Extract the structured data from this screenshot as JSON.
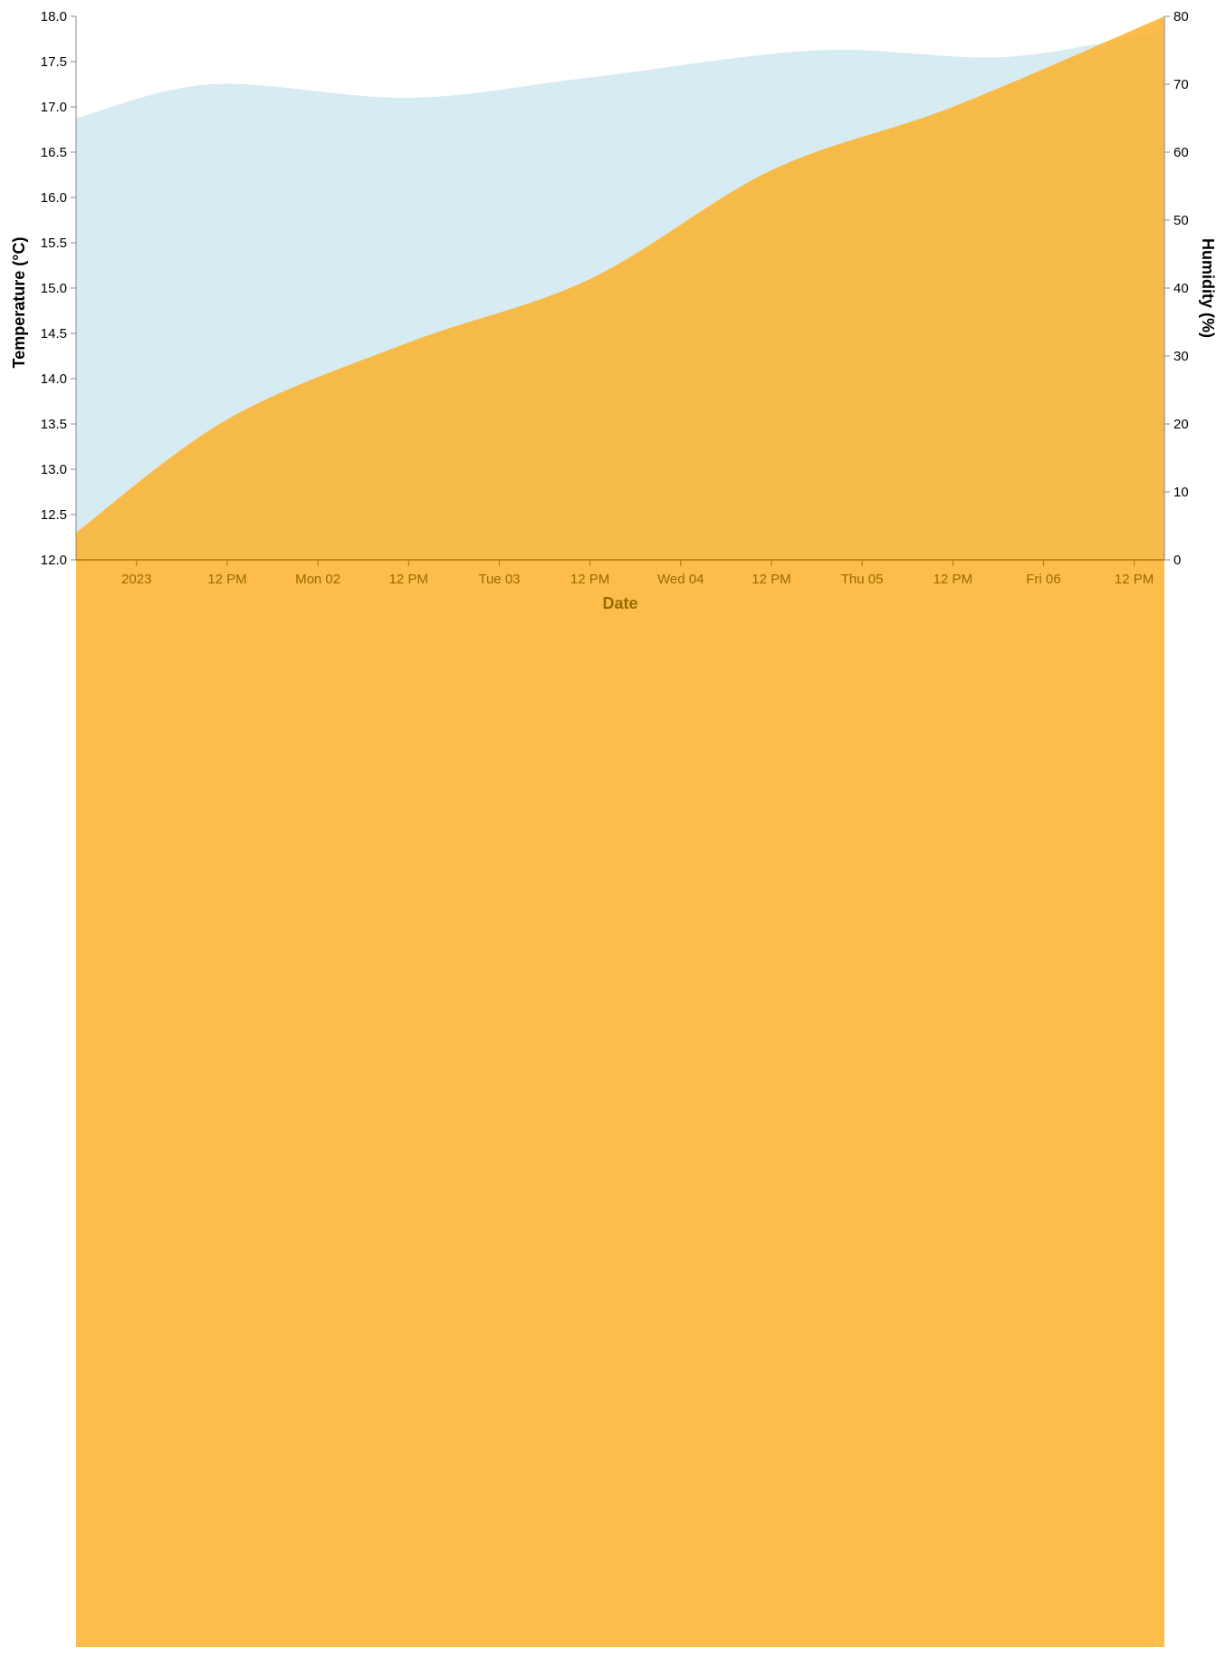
{
  "chart_data": {
    "type": "area",
    "xlabel": "Date",
    "ylabel_left": "Temperature (°C)",
    "ylabel_right": "Humidity (%)",
    "x_tick_labels": [
      "2023",
      "12 PM",
      "Mon 02",
      "12 PM",
      "Tue 03",
      "12 PM",
      "Wed 04",
      "12 PM",
      "Thu 05",
      "12 PM",
      "Fri 06",
      "12 PM"
    ],
    "x_tick_hours": [
      0,
      12,
      24,
      36,
      48,
      60,
      72,
      84,
      96,
      108,
      120,
      132
    ],
    "x_range_hours": [
      -8,
      136
    ],
    "y_left": {
      "range": [
        12.0,
        18.0
      ],
      "ticks": [
        12.0,
        12.5,
        13.0,
        13.5,
        14.0,
        14.5,
        15.0,
        15.5,
        16.0,
        16.5,
        17.0,
        17.5,
        18.0
      ],
      "tick_labels": [
        "12.0",
        "12.5",
        "13.0",
        "13.5",
        "14.0",
        "14.5",
        "15.0",
        "15.5",
        "16.0",
        "16.5",
        "17.0",
        "17.5",
        "18.0"
      ]
    },
    "y_right": {
      "range": [
        0,
        80
      ],
      "ticks": [
        0,
        10,
        20,
        30,
        40,
        50,
        60,
        70,
        80
      ],
      "tick_labels": [
        "0",
        "10",
        "20",
        "30",
        "40",
        "50",
        "60",
        "70",
        "80"
      ]
    },
    "series": [
      {
        "axis": "right",
        "color": "#add8e6",
        "opacity": 0.5,
        "points": [
          {
            "hour": -8,
            "value": 65
          },
          {
            "hour": 10,
            "value": 70
          },
          {
            "hour": 36,
            "value": 68
          },
          {
            "hour": 60,
            "value": 71
          },
          {
            "hour": 90,
            "value": 75
          },
          {
            "hour": 115,
            "value": 74
          },
          {
            "hour": 136,
            "value": 78
          }
        ]
      },
      {
        "axis": "left",
        "color": "#fbb22c",
        "opacity": 0.85,
        "points": [
          {
            "hour": -8,
            "value": 12.3
          },
          {
            "hour": 12,
            "value": 13.55
          },
          {
            "hour": 36,
            "value": 14.4
          },
          {
            "hour": 60,
            "value": 15.1
          },
          {
            "hour": 84,
            "value": 16.3
          },
          {
            "hour": 108,
            "value": 17.0
          },
          {
            "hour": 136,
            "value": 18.0
          }
        ]
      }
    ],
    "grid": false,
    "legend": "none"
  }
}
